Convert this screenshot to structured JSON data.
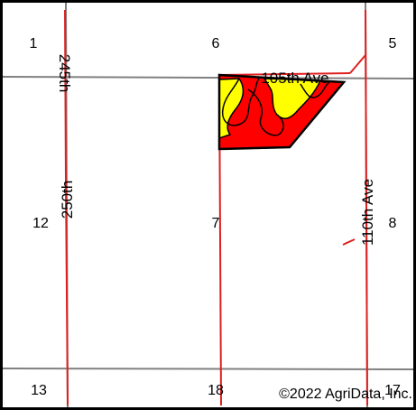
{
  "sections": [
    {
      "id": "1",
      "label": "1"
    },
    {
      "id": "6",
      "label": "6"
    },
    {
      "id": "5",
      "label": "5"
    },
    {
      "id": "12",
      "label": "12"
    },
    {
      "id": "7",
      "label": "7"
    },
    {
      "id": "8",
      "label": "8"
    },
    {
      "id": "13",
      "label": "13"
    },
    {
      "id": "18",
      "label": "18"
    },
    {
      "id": "17",
      "label": "17"
    }
  ],
  "roads": {
    "road_245": "245th",
    "road_250": "250th",
    "road_105": "105th Ave",
    "road_110": "110th Ave"
  },
  "copyright": "©2022 AgriData, Inc.",
  "colors": {
    "grid": "#808080",
    "road": "#e02020",
    "field_red": "#ff0000",
    "field_yellow": "#ffff00",
    "outline": "#000000"
  }
}
